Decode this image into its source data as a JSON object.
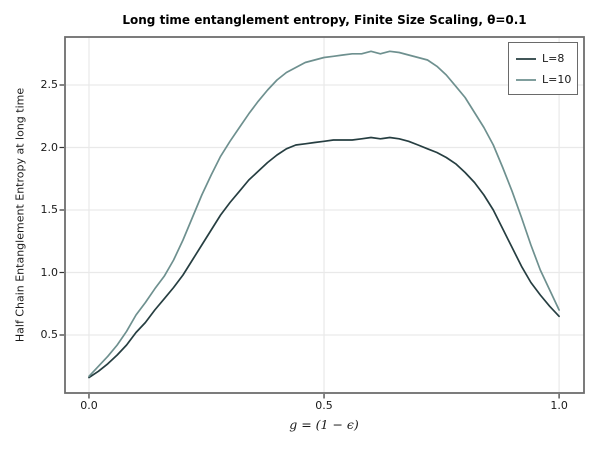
{
  "figure": {
    "background": "#ffffff"
  },
  "chart_data": {
    "type": "line",
    "title": "Long time entanglement entropy, Finite Size Scaling, θ=0.1",
    "xlabel": "g = (1 − ϵ)",
    "ylabel": "Half Chain Entanglement Entropy at long time",
    "xlim": [
      -0.051,
      1.053
    ],
    "ylim": [
      0.036,
      2.884
    ],
    "grid": true,
    "legend_position": "upper right",
    "xticks": {
      "values": [
        0.0,
        0.5,
        1.0
      ],
      "labels": [
        "0.0",
        "0.5",
        "1.0"
      ]
    },
    "yticks": {
      "values": [
        0.5,
        1.0,
        1.5,
        2.0,
        2.5
      ],
      "labels": [
        "0.5",
        "1.0",
        "1.5",
        "2.0",
        "2.5"
      ]
    },
    "colors": {
      "grid": "#e9e9e9",
      "spine": "#6e6e6e",
      "tick": "#333333",
      "text": "#1a1a1a"
    },
    "x": [
      0.0,
      0.02,
      0.04,
      0.06,
      0.08,
      0.1,
      0.12,
      0.14,
      0.16,
      0.18,
      0.2,
      0.22,
      0.24,
      0.26,
      0.28,
      0.3,
      0.32,
      0.34,
      0.36,
      0.38,
      0.4,
      0.42,
      0.44,
      0.46,
      0.48,
      0.5,
      0.52,
      0.54,
      0.56,
      0.58,
      0.6,
      0.62,
      0.64,
      0.66,
      0.68,
      0.7,
      0.72,
      0.74,
      0.76,
      0.78,
      0.8,
      0.82,
      0.84,
      0.86,
      0.88,
      0.9,
      0.92,
      0.94,
      0.96,
      0.98,
      1.0
    ],
    "series": [
      {
        "name": "L=8",
        "color": "#263e41",
        "values": [
          0.16,
          0.21,
          0.27,
          0.34,
          0.42,
          0.52,
          0.6,
          0.7,
          0.79,
          0.88,
          0.98,
          1.1,
          1.22,
          1.34,
          1.46,
          1.56,
          1.65,
          1.74,
          1.81,
          1.88,
          1.94,
          1.99,
          2.02,
          2.03,
          2.04,
          2.05,
          2.06,
          2.06,
          2.06,
          2.07,
          2.08,
          2.07,
          2.08,
          2.07,
          2.05,
          2.02,
          1.99,
          1.96,
          1.92,
          1.87,
          1.8,
          1.72,
          1.62,
          1.5,
          1.35,
          1.2,
          1.05,
          0.92,
          0.82,
          0.73,
          0.65
        ]
      },
      {
        "name": "L=10",
        "color": "#6e908f",
        "values": [
          0.17,
          0.25,
          0.33,
          0.42,
          0.53,
          0.66,
          0.76,
          0.87,
          0.97,
          1.1,
          1.26,
          1.44,
          1.62,
          1.78,
          1.93,
          2.05,
          2.16,
          2.27,
          2.37,
          2.46,
          2.54,
          2.6,
          2.64,
          2.68,
          2.7,
          2.72,
          2.73,
          2.74,
          2.75,
          2.75,
          2.77,
          2.75,
          2.77,
          2.76,
          2.74,
          2.72,
          2.7,
          2.65,
          2.58,
          2.49,
          2.4,
          2.28,
          2.16,
          2.02,
          1.84,
          1.65,
          1.44,
          1.22,
          1.02,
          0.86,
          0.7
        ]
      }
    ]
  }
}
